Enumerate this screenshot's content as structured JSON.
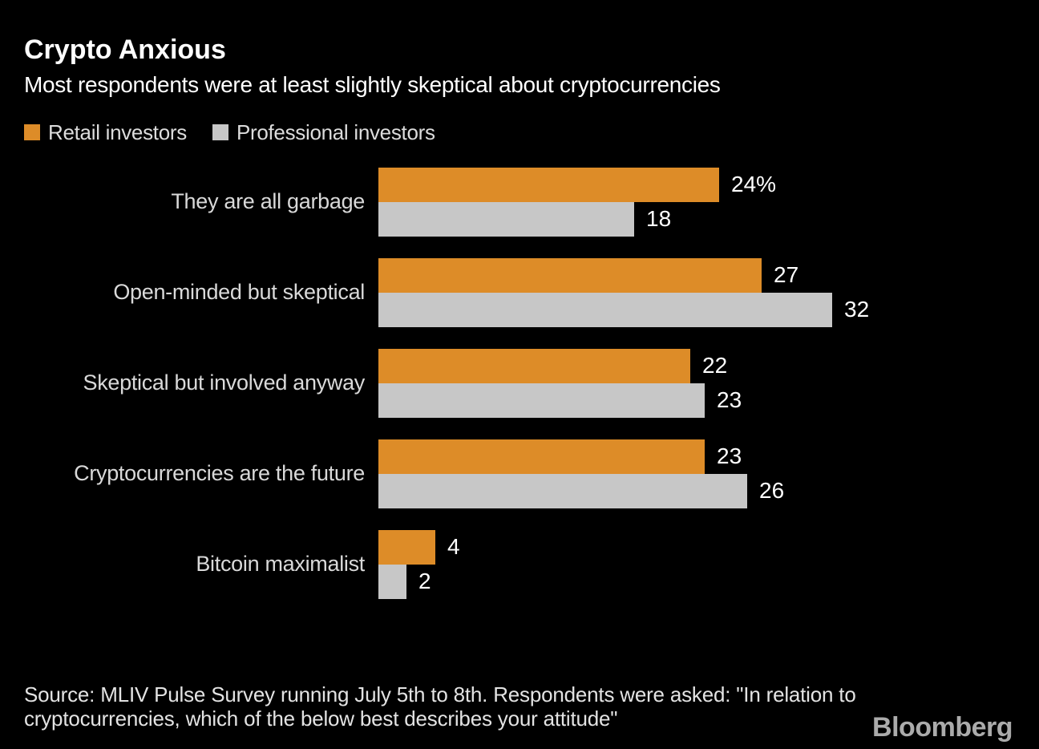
{
  "header": {
    "title": "Crypto Anxious",
    "subtitle": "Most respondents were at least slightly skeptical about cryptocurrencies"
  },
  "colors": {
    "background": "#000000",
    "retail_orange": "#dd8c28",
    "professional_gray": "#c7c7c7",
    "label_gray": "#d9d9d9",
    "value_white": "#ffffff",
    "brand_gray": "#ababab"
  },
  "legend": {
    "items": [
      {
        "label": "Retail investors",
        "color": "#dd8c28",
        "icon": "swatch-square"
      },
      {
        "label": "Professional investors",
        "color": "#c7c7c7",
        "icon": "swatch-square"
      }
    ]
  },
  "chart_data": {
    "type": "bar",
    "orientation": "horizontal",
    "title": "Crypto Anxious",
    "subtitle": "Most respondents were at least slightly skeptical about cryptocurrencies",
    "categories": [
      "They are all garbage",
      "Open-minded but skeptical",
      "Skeptical but involved anyway",
      "Cryptocurrencies are the future",
      "Bitcoin maximalist"
    ],
    "series": [
      {
        "name": "Retail investors",
        "color": "#dd8c28",
        "values": [
          24,
          27,
          22,
          23,
          4
        ],
        "value_labels": [
          "24%",
          "27",
          "22",
          "23",
          "4"
        ]
      },
      {
        "name": "Professional investors",
        "color": "#c7c7c7",
        "values": [
          18,
          32,
          23,
          26,
          2
        ],
        "value_labels": [
          "18",
          "32",
          "23",
          "26",
          "2"
        ]
      }
    ],
    "xlim": [
      0,
      32
    ],
    "unit": "percent",
    "grid": false,
    "legend_position": "top-left"
  },
  "footer": {
    "source": "Source: MLIV Pulse Survey running July 5th to 8th. Respondents were asked: \"In relation to cryptocurrencies, which of the below best describes your attitude\"",
    "brand": "Bloomberg"
  }
}
